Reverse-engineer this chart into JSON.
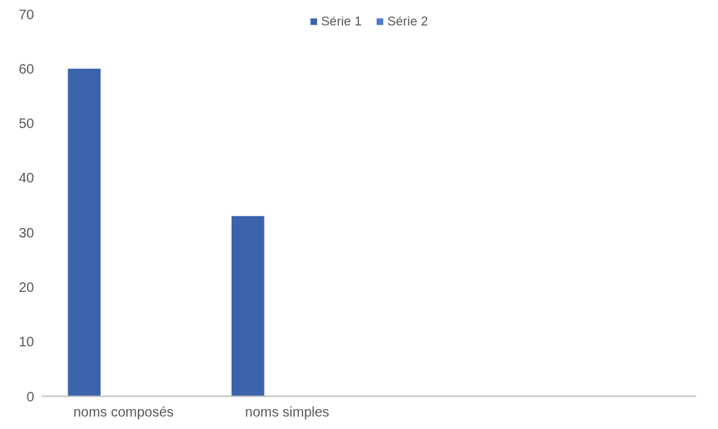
{
  "chart_data": {
    "type": "bar",
    "categories": [
      "noms composés",
      "noms simples",
      null,
      null
    ],
    "series": [
      {
        "name": "Série 1",
        "color": "#3c64ac",
        "values": [
          60,
          33,
          null,
          null
        ]
      },
      {
        "name": "Série 2",
        "color": "#4a7cd0",
        "values": [
          null,
          null,
          null,
          null
        ]
      }
    ],
    "ylim": [
      0,
      70
    ],
    "yticks": [
      0,
      10,
      20,
      30,
      40,
      50,
      60,
      70
    ],
    "grid": false,
    "legend": "top"
  }
}
